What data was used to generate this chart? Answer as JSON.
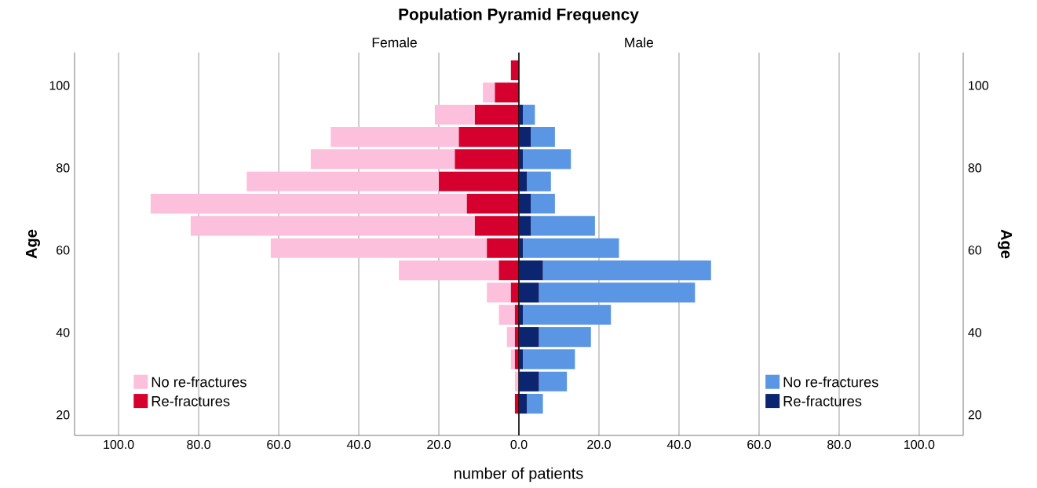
{
  "chart_data": [
    {
      "type": "bar",
      "orientation": "horizontal",
      "stacked": true,
      "title": "Population Pyramid Frequency",
      "xlabel": "number of patients",
      "ylabel": "Age",
      "annotations": [
        "Female"
      ],
      "x": [
        103.7,
        98.3,
        92.9,
        87.5,
        82.1,
        76.7,
        71.3,
        65.9,
        60.5,
        55.1,
        49.7,
        44.3,
        38.9,
        33.5,
        28.1,
        22.7
      ],
      "series": [
        {
          "name": "Re-fractures",
          "color": "#d6002e",
          "values": [
            2,
            6,
            11,
            15,
            16,
            20,
            13,
            11,
            8,
            5,
            2,
            1,
            1,
            1,
            0,
            1
          ]
        },
        {
          "name": "No re-fractures",
          "color": "#fcc0dc",
          "values": [
            0,
            3,
            10,
            32,
            36,
            48,
            79,
            71,
            54,
            25,
            6,
            4,
            2,
            1,
            1,
            0
          ]
        }
      ],
      "xlim": [
        111,
        0
      ],
      "xticks": [
        {
          "value": 100,
          "label": "100.0"
        },
        {
          "value": 80,
          "label": "80.0"
        },
        {
          "value": 60,
          "label": "60.0"
        },
        {
          "value": 40,
          "label": "40.0"
        },
        {
          "value": 20,
          "label": "20.0"
        },
        {
          "value": 0,
          "label": "0.0"
        }
      ],
      "ylim": [
        15,
        108
      ],
      "yticks": [
        20,
        40,
        60,
        80,
        100
      ],
      "grid": "x",
      "legend": "bottom left"
    },
    {
      "type": "bar",
      "orientation": "horizontal",
      "stacked": true,
      "y2label": "Age",
      "annotations": [
        "Male"
      ],
      "x": [
        103.7,
        98.3,
        92.9,
        87.5,
        82.1,
        76.7,
        71.3,
        65.9,
        60.5,
        55.1,
        49.7,
        44.3,
        38.9,
        33.5,
        28.1,
        22.7
      ],
      "series": [
        {
          "name": "Re-fractures",
          "color": "#0c2570",
          "values": [
            0,
            0,
            1,
            3,
            1,
            2,
            3,
            3,
            1,
            6,
            5,
            1,
            5,
            1,
            5,
            2
          ]
        },
        {
          "name": "No re-fractures",
          "color": "#5a96e3",
          "values": [
            0,
            0,
            3,
            6,
            12,
            6,
            6,
            16,
            24,
            42,
            39,
            22,
            13,
            13,
            7,
            4
          ]
        }
      ],
      "xlim": [
        0,
        111
      ],
      "xticks": [
        {
          "value": 20,
          "label": "20.0"
        },
        {
          "value": 40,
          "label": "40.0"
        },
        {
          "value": 60,
          "label": "60.0"
        },
        {
          "value": 80,
          "label": "80.0"
        },
        {
          "value": 100,
          "label": "100.0"
        }
      ],
      "ylim": [
        15,
        108
      ],
      "y2lim": [
        15,
        108
      ],
      "y2ticks": [
        20,
        40,
        60,
        80,
        100
      ],
      "grid": "x",
      "legend": "bottom right"
    }
  ]
}
